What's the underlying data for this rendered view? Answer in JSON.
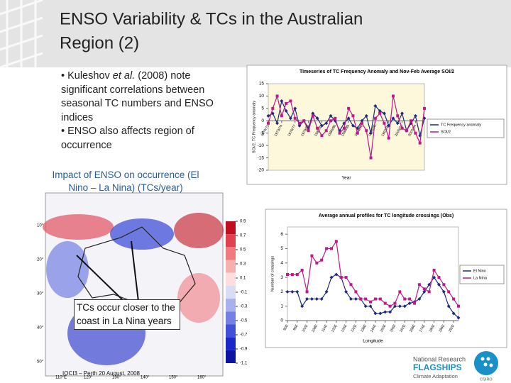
{
  "header": {
    "title": "ENSO Variability & TCs in the Australian Region (2)"
  },
  "bullets": [
    {
      "before": "• Kuleshov ",
      "italic": "et al.",
      "after": " (2008) note significant correlations between seasonal TC numbers and ENSO indices"
    },
    {
      "text": "• ENSO also affects region of occurrence"
    }
  ],
  "caption": "Impact of ENSO on occurrence (El Nino – La Nina) (TCs/year)",
  "callout": "TCs occur closer to the coast in La Nina years",
  "footer": "IOCI3 – Perth 20 August, 2008",
  "logo": {
    "line1": "National Research",
    "line2": "FLAGSHIPS",
    "line3": "Climate Adaptation",
    "org": "CSIRO"
  },
  "map": {
    "lat_labels": [
      "10°",
      "20°",
      "30°",
      "40°",
      "50°"
    ],
    "lon_labels": [
      "110°E",
      "120°",
      "130°",
      "140°",
      "150°",
      "160°"
    ],
    "colorbar": {
      "ticks": [
        0.9,
        0.7,
        0.5,
        0.3,
        0.1,
        -0.1,
        -0.3,
        -0.5,
        -0.7,
        -0.9,
        -1.1
      ],
      "colors": [
        "#c01020",
        "#e04050",
        "#f07a80",
        "#f7b0b0",
        "#fbdede",
        "#d8dcf5",
        "#a8b0ee",
        "#7480e4",
        "#4050d8",
        "#1a28c8",
        "#0a14a0"
      ]
    }
  },
  "chart_data": [
    {
      "type": "line",
      "title": "Timeseries of TC Frequency Anomaly and Nov-Feb Average SOI/2",
      "x_label": "Year",
      "y_label": "SOI/2, TC Frequency anomaly",
      "x": [
        1970,
        1971,
        1972,
        1973,
        1974,
        1975,
        1976,
        1977,
        1978,
        1979,
        1980,
        1981,
        1982,
        1983,
        1984,
        1985,
        1986,
        1987,
        1988,
        1989,
        1990,
        1991,
        1992,
        1993,
        1994,
        1995,
        1996,
        1997,
        1998,
        1999,
        2000,
        2001,
        2002,
        2003,
        2004,
        2005
      ],
      "xlim": [
        1970,
        2005
      ],
      "xticks": [
        {
          "value": 1970,
          "label": "1970/71"
        },
        {
          "value": 1973,
          "label": "1973/74"
        },
        {
          "value": 1976,
          "label": "1976/77"
        },
        {
          "value": 1979,
          "label": "1979/80"
        },
        {
          "value": 1982,
          "label": "1982/83"
        },
        {
          "value": 1985,
          "label": "1985/86"
        },
        {
          "value": 1988,
          "label": "1988/89"
        },
        {
          "value": 1991,
          "label": "1991/92"
        },
        {
          "value": 1994,
          "label": "1994/95"
        },
        {
          "value": 1997,
          "label": "1997/98"
        },
        {
          "value": 2000,
          "label": "2000/01"
        },
        {
          "value": 2003,
          "label": "2003/04"
        }
      ],
      "ylim": [
        -20,
        15
      ],
      "yticks": [
        15,
        10,
        5,
        0,
        -5,
        -10,
        -15,
        -20
      ],
      "legend": "right",
      "series": [
        {
          "name": "TC Frequency anomaly",
          "color": "#1f2a80",
          "marker": "diamond",
          "values": [
            2,
            3,
            -1,
            8,
            4,
            1,
            5,
            -2,
            0,
            -3,
            3,
            1,
            -2,
            -1,
            2,
            0,
            -4,
            -1,
            1,
            -2,
            -3,
            0,
            2,
            -5,
            6,
            4,
            3,
            -2,
            1,
            -1,
            3,
            -4,
            -1,
            2,
            -6,
            1
          ]
        },
        {
          "name": "SOI/2",
          "color": "#c0188a",
          "marker": "square",
          "values": [
            -1,
            5,
            10,
            2,
            7,
            8,
            1,
            -1,
            0,
            -4,
            2,
            -3,
            -6,
            -4,
            0,
            1,
            -5,
            -3,
            5,
            2,
            -5,
            -1,
            -4,
            -15,
            1,
            3,
            -1,
            -7,
            10,
            2,
            -3,
            -4,
            0,
            -5,
            -9,
            5
          ]
        }
      ]
    },
    {
      "type": "line",
      "title": "Average annual profiles for TC longitude crossings (Obs)",
      "x_label": "Longitude",
      "y_label": "Number of crossings",
      "x": [
        90,
        93,
        96,
        99,
        102,
        105,
        108,
        111,
        114,
        117,
        120,
        123,
        126,
        129,
        132,
        135,
        138,
        141,
        144,
        147,
        150,
        153,
        156,
        159,
        162,
        165,
        168,
        171,
        174,
        177,
        180,
        183,
        186,
        189,
        192,
        195
      ],
      "xlim": [
        90,
        195
      ],
      "xticks": [
        {
          "value": 90,
          "label": "90E"
        },
        {
          "value": 96,
          "label": "96E"
        },
        {
          "value": 102,
          "label": "102E"
        },
        {
          "value": 108,
          "label": "108E"
        },
        {
          "value": 114,
          "label": "114E"
        },
        {
          "value": 120,
          "label": "120E"
        },
        {
          "value": 126,
          "label": "126E"
        },
        {
          "value": 132,
          "label": "132E"
        },
        {
          "value": 138,
          "label": "138E"
        },
        {
          "value": 144,
          "label": "144E"
        },
        {
          "value": 150,
          "label": "150E"
        },
        {
          "value": 156,
          "label": "156E"
        },
        {
          "value": 162,
          "label": "162E"
        },
        {
          "value": 168,
          "label": "168E"
        },
        {
          "value": 174,
          "label": "174E"
        },
        {
          "value": 180,
          "label": "180E"
        },
        {
          "value": 186,
          "label": "186E"
        },
        {
          "value": 192,
          "label": "192E"
        }
      ],
      "ylim": [
        0,
        6.5
      ],
      "yticks": [
        0,
        1,
        2,
        3,
        4,
        5,
        6
      ],
      "legend": "right",
      "series": [
        {
          "name": "El Nino",
          "color": "#1f2a80",
          "marker": "diamond",
          "values": [
            2,
            2,
            2,
            1,
            1.5,
            1.5,
            1.5,
            1.5,
            2,
            3,
            3.2,
            3,
            2,
            1.5,
            1.5,
            1.5,
            1,
            1,
            0.5,
            0.5,
            0.6,
            0.6,
            1,
            1,
            1,
            1.2,
            1.3,
            1.5,
            2,
            2.5,
            3,
            2.5,
            2,
            1,
            0.5,
            0.2
          ]
        },
        {
          "name": "La Nina",
          "color": "#c0188a",
          "marker": "square",
          "values": [
            3.2,
            3.2,
            3.2,
            3.5,
            2,
            4.5,
            4,
            4.2,
            5,
            5,
            5.5,
            3,
            3,
            2.5,
            2,
            1.5,
            1.5,
            1.3,
            1.5,
            1.5,
            1.2,
            1,
            1.2,
            2,
            1.5,
            1.5,
            1.2,
            2.5,
            2.2,
            2,
            3.5,
            3,
            2.5,
            2,
            1.5,
            1
          ]
        }
      ]
    }
  ]
}
